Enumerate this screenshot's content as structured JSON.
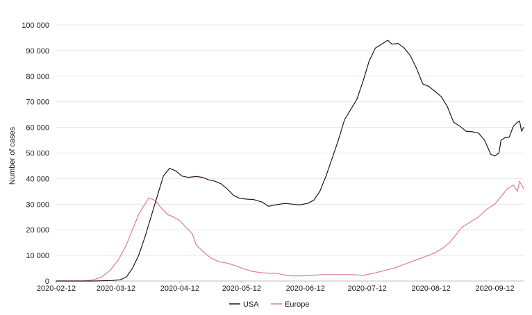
{
  "chart_data": {
    "type": "line",
    "xlabel": "",
    "ylabel": "Number of cases",
    "x_start": "2020-02-12",
    "x_end": "2020-09-26",
    "xlim": [
      "2020-02-12",
      "2020-09-26"
    ],
    "ylim": [
      0,
      100000
    ],
    "x_ticks": [
      "2020-02-12",
      "2020-03-12",
      "2020-04-12",
      "2020-05-12",
      "2020-06-12",
      "2020-07-12",
      "2020-08-12",
      "2020-09-12"
    ],
    "y_ticks": [
      0,
      10000,
      20000,
      30000,
      40000,
      50000,
      60000,
      70000,
      80000,
      90000,
      100000
    ],
    "y_tick_labels": [
      "0",
      "10 000",
      "20 000",
      "30 000",
      "40 000",
      "50 000",
      "60 000",
      "70 000",
      "80 000",
      "90 000",
      "100 000"
    ],
    "grid": "horizontal",
    "legend": "bottom-center",
    "series": [
      {
        "name": "USA",
        "color": "#2a0f1f",
        "points": [
          [
            "2020-02-12",
            0
          ],
          [
            "2020-02-20",
            0
          ],
          [
            "2020-03-01",
            0
          ],
          [
            "2020-03-10",
            200
          ],
          [
            "2020-03-14",
            500
          ],
          [
            "2020-03-17",
            1500
          ],
          [
            "2020-03-20",
            5000
          ],
          [
            "2020-03-23",
            10000
          ],
          [
            "2020-03-26",
            17000
          ],
          [
            "2020-03-29",
            25000
          ],
          [
            "2020-04-01",
            33000
          ],
          [
            "2020-04-04",
            41000
          ],
          [
            "2020-04-07",
            44000
          ],
          [
            "2020-04-10",
            43000
          ],
          [
            "2020-04-13",
            41000
          ],
          [
            "2020-04-16",
            40500
          ],
          [
            "2020-04-20",
            40800
          ],
          [
            "2020-04-23",
            40500
          ],
          [
            "2020-04-26",
            39500
          ],
          [
            "2020-04-29",
            39000
          ],
          [
            "2020-05-02",
            38000
          ],
          [
            "2020-05-05",
            36000
          ],
          [
            "2020-05-08",
            33500
          ],
          [
            "2020-05-11",
            32300
          ],
          [
            "2020-05-14",
            32000
          ],
          [
            "2020-05-18",
            31800
          ],
          [
            "2020-05-22",
            30800
          ],
          [
            "2020-05-25",
            29200
          ],
          [
            "2020-05-29",
            29800
          ],
          [
            "2020-06-02",
            30300
          ],
          [
            "2020-06-06",
            30000
          ],
          [
            "2020-06-09",
            29700
          ],
          [
            "2020-06-13",
            30300
          ],
          [
            "2020-06-16",
            31500
          ],
          [
            "2020-06-19",
            35000
          ],
          [
            "2020-06-22",
            41000
          ],
          [
            "2020-06-25",
            48000
          ],
          [
            "2020-06-28",
            55000
          ],
          [
            "2020-07-01",
            63000
          ],
          [
            "2020-07-04",
            67000
          ],
          [
            "2020-07-07",
            71000
          ],
          [
            "2020-07-10",
            78000
          ],
          [
            "2020-07-13",
            86000
          ],
          [
            "2020-07-16",
            91000
          ],
          [
            "2020-07-19",
            92500
          ],
          [
            "2020-07-22",
            94000
          ],
          [
            "2020-07-24",
            92500
          ],
          [
            "2020-07-27",
            92800
          ],
          [
            "2020-07-30",
            91000
          ],
          [
            "2020-08-02",
            88000
          ],
          [
            "2020-08-05",
            83000
          ],
          [
            "2020-08-08",
            77000
          ],
          [
            "2020-08-11",
            76000
          ],
          [
            "2020-08-14",
            74000
          ],
          [
            "2020-08-17",
            72000
          ],
          [
            "2020-08-20",
            68000
          ],
          [
            "2020-08-23",
            62000
          ],
          [
            "2020-08-26",
            60500
          ],
          [
            "2020-08-29",
            58500
          ],
          [
            "2020-09-01",
            58300
          ],
          [
            "2020-09-04",
            57800
          ],
          [
            "2020-09-07",
            55000
          ],
          [
            "2020-09-10",
            49500
          ],
          [
            "2020-09-12",
            48800
          ],
          [
            "2020-09-14",
            50000
          ],
          [
            "2020-09-15",
            55000
          ],
          [
            "2020-09-17",
            56000
          ],
          [
            "2020-09-19",
            56200
          ],
          [
            "2020-09-21",
            60500
          ],
          [
            "2020-09-23",
            62000
          ],
          [
            "2020-09-24",
            62500
          ],
          [
            "2020-09-25",
            58500
          ],
          [
            "2020-09-26",
            60000
          ]
        ]
      },
      {
        "name": "Europe",
        "color": "#e07d87",
        "points": [
          [
            "2020-02-12",
            0
          ],
          [
            "2020-02-25",
            0
          ],
          [
            "2020-03-01",
            500
          ],
          [
            "2020-03-05",
            1500
          ],
          [
            "2020-03-09",
            4000
          ],
          [
            "2020-03-13",
            8000
          ],
          [
            "2020-03-17",
            14000
          ],
          [
            "2020-03-20",
            20000
          ],
          [
            "2020-03-23",
            26000
          ],
          [
            "2020-03-26",
            30000
          ],
          [
            "2020-03-28",
            32500
          ],
          [
            "2020-03-31",
            31500
          ],
          [
            "2020-04-03",
            28500
          ],
          [
            "2020-04-06",
            26000
          ],
          [
            "2020-04-09",
            25000
          ],
          [
            "2020-04-12",
            23500
          ],
          [
            "2020-04-15",
            21000
          ],
          [
            "2020-04-18",
            18500
          ],
          [
            "2020-04-20",
            14000
          ],
          [
            "2020-04-24",
            11000
          ],
          [
            "2020-04-27",
            9000
          ],
          [
            "2020-05-01",
            7500
          ],
          [
            "2020-05-05",
            7000
          ],
          [
            "2020-05-09",
            6000
          ],
          [
            "2020-05-13",
            4800
          ],
          [
            "2020-05-17",
            3800
          ],
          [
            "2020-05-21",
            3300
          ],
          [
            "2020-05-25",
            3000
          ],
          [
            "2020-05-29",
            3000
          ],
          [
            "2020-06-01",
            2500
          ],
          [
            "2020-06-05",
            2000
          ],
          [
            "2020-06-10",
            2000
          ],
          [
            "2020-06-15",
            2200
          ],
          [
            "2020-06-20",
            2500
          ],
          [
            "2020-06-25",
            2500
          ],
          [
            "2020-06-30",
            2500
          ],
          [
            "2020-07-05",
            2500
          ],
          [
            "2020-07-10",
            2200
          ],
          [
            "2020-07-15",
            3000
          ],
          [
            "2020-07-20",
            4000
          ],
          [
            "2020-07-25",
            5000
          ],
          [
            "2020-07-30",
            6500
          ],
          [
            "2020-08-04",
            8000
          ],
          [
            "2020-08-09",
            9500
          ],
          [
            "2020-08-14",
            11000
          ],
          [
            "2020-08-18",
            13000
          ],
          [
            "2020-08-21",
            15000
          ],
          [
            "2020-08-24",
            18000
          ],
          [
            "2020-08-27",
            21000
          ],
          [
            "2020-08-31",
            23000
          ],
          [
            "2020-09-04",
            25000
          ],
          [
            "2020-09-08",
            28000
          ],
          [
            "2020-09-12",
            30000
          ],
          [
            "2020-09-15",
            33000
          ],
          [
            "2020-09-18",
            36000
          ],
          [
            "2020-09-21",
            37500
          ],
          [
            "2020-09-23",
            35000
          ],
          [
            "2020-09-24",
            39000
          ],
          [
            "2020-09-26",
            36000
          ]
        ]
      }
    ]
  }
}
